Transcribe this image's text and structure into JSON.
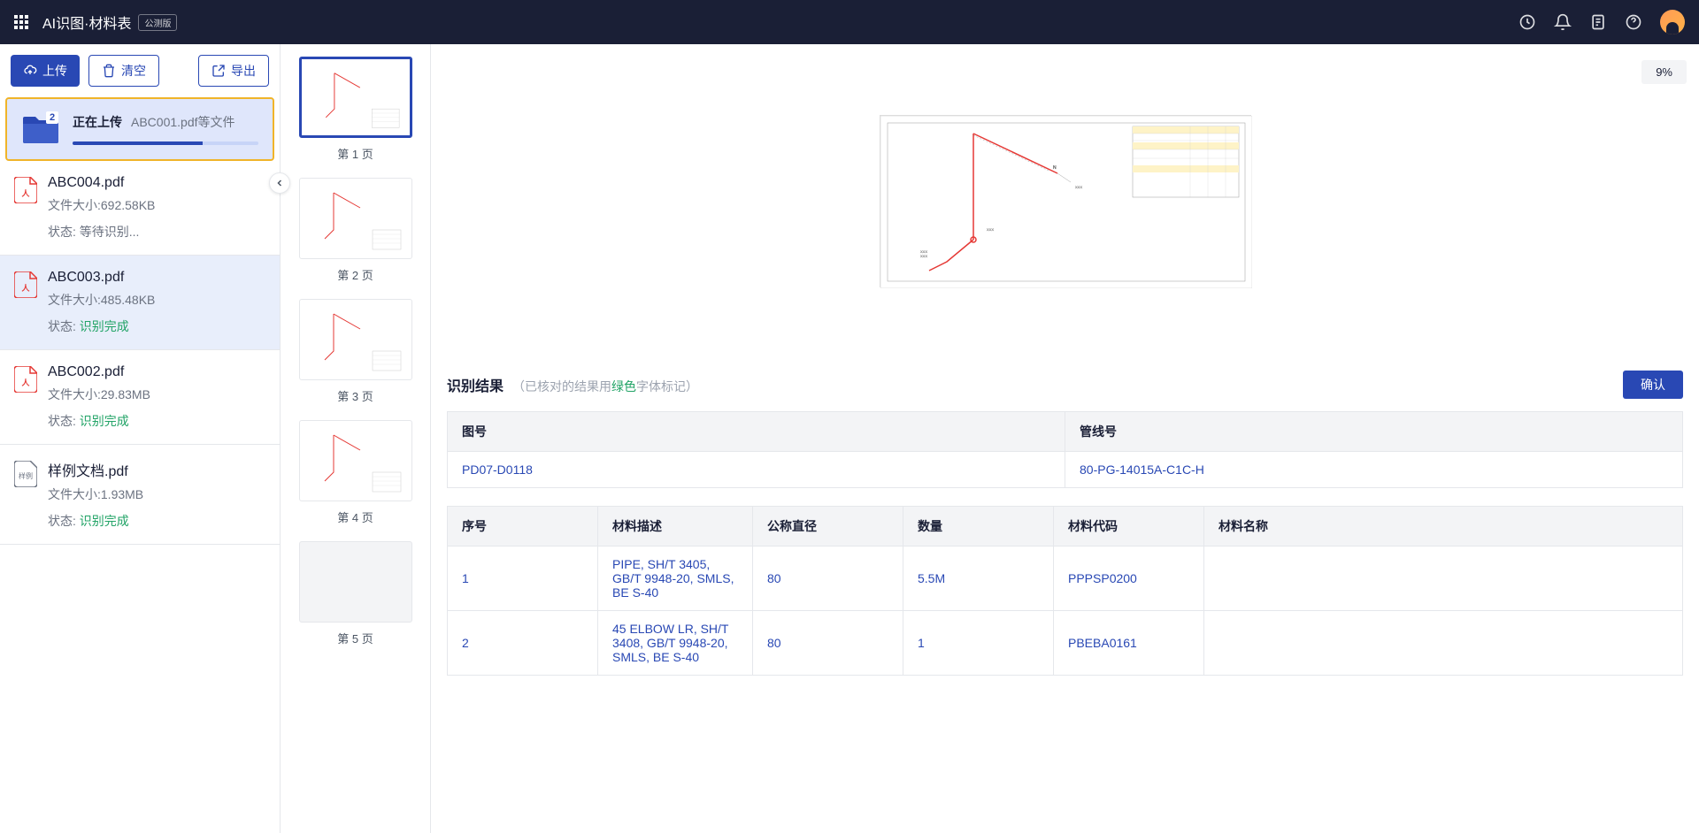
{
  "header": {
    "title": "AI识图·材料表",
    "beta": "公测版"
  },
  "toolbar": {
    "upload": "上传",
    "clear": "清空",
    "export": "导出"
  },
  "upload_card": {
    "badge": "2",
    "label": "正在上传",
    "files": "ABC001.pdf等文件",
    "progress_pct": 70
  },
  "files": [
    {
      "name": "ABC004.pdf",
      "size_label": "文件大小:692.58KB",
      "status_label": "状态: ",
      "status_text": "等待识别...",
      "complete": false,
      "selected": false,
      "type": "pdf"
    },
    {
      "name": "ABC003.pdf",
      "size_label": "文件大小:485.48KB",
      "status_label": "状态: ",
      "status_text": "识别完成",
      "complete": true,
      "selected": true,
      "type": "pdf"
    },
    {
      "name": "ABC002.pdf",
      "size_label": "文件大小:29.83MB",
      "status_label": "状态: ",
      "status_text": "识别完成",
      "complete": true,
      "selected": false,
      "type": "pdf"
    },
    {
      "name": "样例文档.pdf",
      "size_label": "文件大小:1.93MB",
      "status_label": "状态: ",
      "status_text": "识别完成",
      "complete": true,
      "selected": false,
      "type": "sample"
    }
  ],
  "thumbnails": [
    {
      "label": "第 1 页",
      "active": true
    },
    {
      "label": "第 2 页",
      "active": false
    },
    {
      "label": "第 3 页",
      "active": false
    },
    {
      "label": "第 4 页",
      "active": false
    },
    {
      "label": "第 5 页",
      "active": false,
      "highlighted": true
    }
  ],
  "zoom": "9%",
  "results": {
    "title": "识别结果",
    "subtitle_pre": "（已核对的结果用",
    "subtitle_green": "绿色",
    "subtitle_post": "字体标记）",
    "confirm": "确认",
    "info_headers": {
      "drawing_no": "图号",
      "line_no": "管线号"
    },
    "info_values": {
      "drawing_no": "PD07-D0118",
      "line_no": "80-PG-14015A-C1C-H"
    },
    "columns": {
      "seq": "序号",
      "desc": "材料描述",
      "diameter": "公称直径",
      "qty": "数量",
      "code": "材料代码",
      "name": "材料名称"
    },
    "rows": [
      {
        "seq": "1",
        "desc": "PIPE, SH/T 3405, GB/T 9948-20, SMLS, BE S-40",
        "diameter": "80",
        "qty": "5.5M",
        "code": "PPPSP0200",
        "name": ""
      },
      {
        "seq": "2",
        "desc": "45 ELBOW LR, SH/T 3408, GB/T 9948-20, SMLS, BE S-40",
        "diameter": "80",
        "qty": "1",
        "code": "PBEBA0161",
        "name": ""
      }
    ]
  },
  "colors": {
    "primary": "#2948b4",
    "success": "#21a366",
    "header_bg": "#1a1f36",
    "border": "#e5e7eb",
    "accent": "#f0b429"
  }
}
